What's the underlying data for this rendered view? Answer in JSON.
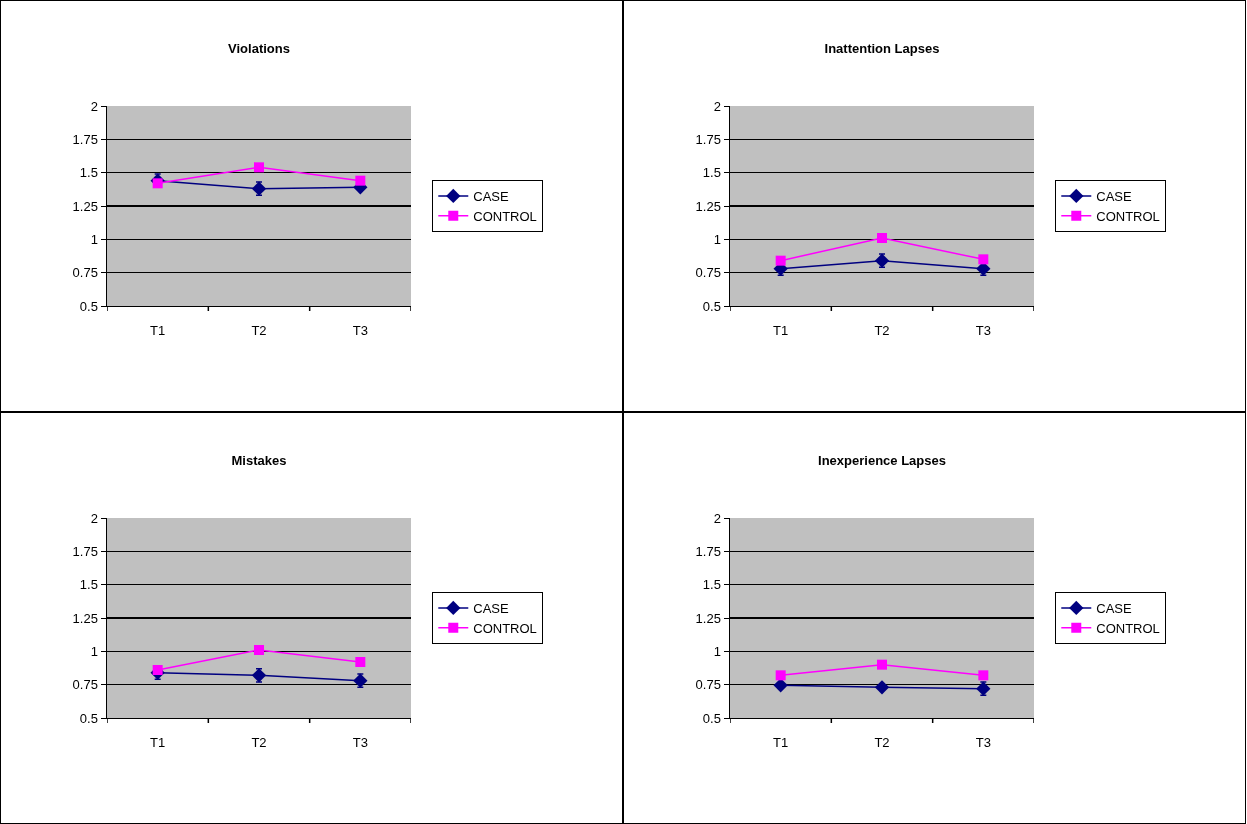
{
  "chart_data": [
    {
      "type": "line",
      "title": "Violations",
      "categories": [
        "T1",
        "T2",
        "T3"
      ],
      "ylim": [
        0.5,
        2
      ],
      "yticks": [
        0.5,
        0.75,
        1,
        1.25,
        1.5,
        1.75,
        2
      ],
      "grid": "y",
      "legend": "right",
      "series": [
        {
          "name": "CASE",
          "color": "#000080",
          "marker": "diamond",
          "values": [
            1.44,
            1.38,
            1.39
          ],
          "errors": [
            [
              1.44,
              1.49
            ],
            0.05,
            null
          ]
        },
        {
          "name": "CONTROL",
          "color": "#ff00ff",
          "marker": "square",
          "values": [
            1.42,
            1.54,
            1.44
          ]
        }
      ]
    },
    {
      "type": "line",
      "title": "Inattention Lapses",
      "categories": [
        "T1",
        "T2",
        "T3"
      ],
      "ylim": [
        0.5,
        2
      ],
      "yticks": [
        0.5,
        0.75,
        1,
        1.25,
        1.5,
        1.75,
        2
      ],
      "grid": "y",
      "legend": "right",
      "series": [
        {
          "name": "CASE",
          "color": "#000080",
          "marker": "diamond",
          "values": [
            0.78,
            0.84,
            0.78
          ],
          "errors": [
            [
              0.73,
              0.78
            ],
            0.05,
            [
              0.73,
              0.78
            ]
          ]
        },
        {
          "name": "CONTROL",
          "color": "#ff00ff",
          "marker": "square",
          "values": [
            0.84,
            1.01,
            0.85
          ]
        }
      ]
    },
    {
      "type": "line",
      "title": "Mistakes",
      "categories": [
        "T1",
        "T2",
        "T3"
      ],
      "ylim": [
        0.5,
        2
      ],
      "yticks": [
        0.5,
        0.75,
        1,
        1.25,
        1.5,
        1.75,
        2
      ],
      "grid": "y",
      "legend": "right",
      "series": [
        {
          "name": "CASE",
          "color": "#000080",
          "marker": "diamond",
          "values": [
            0.84,
            0.82,
            0.78
          ],
          "errors": [
            [
              0.79,
              0.84
            ],
            0.05,
            0.05
          ]
        },
        {
          "name": "CONTROL",
          "color": "#ff00ff",
          "marker": "square",
          "values": [
            0.86,
            1.01,
            0.92
          ]
        }
      ]
    },
    {
      "type": "line",
      "title": "Inexperience Lapses",
      "categories": [
        "T1",
        "T2",
        "T3"
      ],
      "ylim": [
        0.5,
        2
      ],
      "yticks": [
        0.5,
        0.75,
        1,
        1.25,
        1.5,
        1.75,
        2
      ],
      "grid": "y",
      "legend": "right",
      "series": [
        {
          "name": "CASE",
          "color": "#000080",
          "marker": "diamond",
          "values": [
            0.745,
            0.73,
            0.72
          ],
          "errors": [
            null,
            null,
            0.05
          ]
        },
        {
          "name": "CONTROL",
          "color": "#ff00ff",
          "marker": "square",
          "values": [
            0.82,
            0.9,
            0.82
          ]
        }
      ]
    }
  ]
}
